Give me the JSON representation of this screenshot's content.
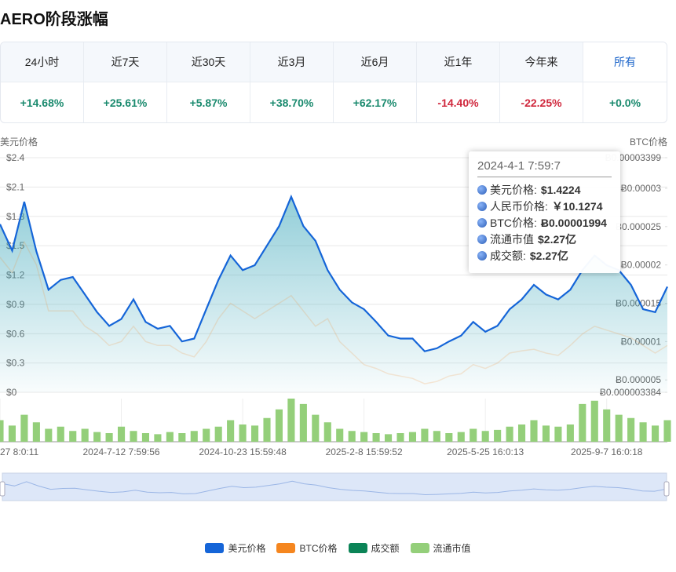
{
  "header": {
    "title": "AERO阶段涨幅"
  },
  "table": {
    "headers": [
      "24小时",
      "近7天",
      "近30天",
      "近3月",
      "近6月",
      "近1年",
      "今年来",
      "所有"
    ],
    "active": 7,
    "rows": [
      [
        "+14.68%",
        "+25.61%",
        "+5.87%",
        "+38.70%",
        "+62.17%",
        "-14.40%",
        "-22.25%",
        "+0.0%"
      ]
    ]
  },
  "chart_data": {
    "type": "line",
    "ylabel": "美元价格",
    "y2label": "BTC价格",
    "categories": [
      "27 8:0:11",
      null,
      null,
      null,
      null,
      null,
      null,
      null,
      null,
      null,
      "2024-7-12 7:59:56",
      null,
      null,
      null,
      null,
      null,
      null,
      null,
      null,
      null,
      "2024-10-23 15:59:48",
      null,
      null,
      null,
      null,
      null,
      null,
      null,
      null,
      null,
      "2025-2-8 15:59:52",
      null,
      null,
      null,
      null,
      null,
      null,
      null,
      null,
      null,
      "2025-5-25 16:0:13",
      null,
      null,
      null,
      null,
      null,
      null,
      null,
      null,
      null,
      "2025-9-7 16:0:18",
      null,
      null,
      null,
      null,
      null
    ],
    "ylim": [
      0,
      2.4
    ],
    "yticks": [
      {
        "value": 0,
        "label": "$0"
      },
      {
        "value": 0.3,
        "label": "$0.3"
      },
      {
        "value": 0.6,
        "label": "$0.6"
      },
      {
        "value": 0.9,
        "label": "$0.9"
      },
      {
        "value": 1.2,
        "label": "$1.2"
      },
      {
        "value": 1.5,
        "label": "$1.5"
      },
      {
        "value": 1.8,
        "label": "$1.8"
      },
      {
        "value": 2.1,
        "label": "$2.1"
      },
      {
        "value": 2.4,
        "label": "$2.4"
      }
    ],
    "y2lim": [
      3.384e-06,
      3.399e-05
    ],
    "y2ticks": [
      {
        "value": 3.384e-06,
        "label": "Ƀ0.000003384"
      },
      {
        "value": 5e-06,
        "label": "Ƀ0.000005"
      },
      {
        "value": 1e-05,
        "label": "Ƀ0.00001"
      },
      {
        "value": 1.5e-05,
        "label": "Ƀ0.000015"
      },
      {
        "value": 2e-05,
        "label": "Ƀ0.00002"
      },
      {
        "value": 2.5e-05,
        "label": "Ƀ0.000025"
      },
      {
        "value": 3e-05,
        "label": "Ƀ0.00003"
      },
      {
        "value": 3.399e-05,
        "label": "Ƀ0.00003399"
      }
    ],
    "grid": true,
    "series": [
      {
        "name": "美元价格",
        "color": "#1565d8",
        "axis": "y",
        "values": [
          1.72,
          1.45,
          1.95,
          1.44,
          1.05,
          1.15,
          1.18,
          1.0,
          0.82,
          0.68,
          0.75,
          0.95,
          0.72,
          0.65,
          0.68,
          0.52,
          0.55,
          0.85,
          1.15,
          1.4,
          1.25,
          1.3,
          1.5,
          1.7,
          2.0,
          1.7,
          1.55,
          1.25,
          1.05,
          0.92,
          0.85,
          0.72,
          0.58,
          0.55,
          0.55,
          0.42,
          0.45,
          0.52,
          0.58,
          0.72,
          0.62,
          0.68,
          0.85,
          0.95,
          1.1,
          1.0,
          0.95,
          1.05,
          1.25,
          1.4,
          1.3,
          1.25,
          1.1,
          0.85,
          0.82,
          1.08
        ]
      },
      {
        "name": "BTC价格",
        "color": "#f5861f",
        "axis": "y2",
        "values": [
          2.1e-05,
          1.9e-05,
          2.3e-05,
          2e-05,
          1.4e-05,
          1.4e-05,
          1.4e-05,
          1.2e-05,
          1.1e-05,
          9.5e-06,
          1e-05,
          1.2e-05,
          1e-05,
          9.5e-06,
          9.5e-06,
          8.5e-06,
          8e-06,
          1e-05,
          1.3e-05,
          1.5e-05,
          1.4e-05,
          1.3e-05,
          1.4e-05,
          1.5e-05,
          1.6e-05,
          1.4e-05,
          1.2e-05,
          1.3e-05,
          1e-05,
          8.5e-06,
          7e-06,
          6.5e-06,
          5.8e-06,
          5.5e-06,
          5.2e-06,
          4.5e-06,
          4.8e-06,
          5.5e-06,
          5.8e-06,
          7e-06,
          6.5e-06,
          7.2e-06,
          8.5e-06,
          8.8e-06,
          9e-06,
          8.5e-06,
          8.2e-06,
          9.5e-06,
          1.1e-05,
          1.2e-05,
          1.15e-05,
          1.1e-05,
          1.05e-05,
          9.5e-06,
          8.5e-06,
          9.5e-06
        ]
      },
      {
        "name": "成交额",
        "color": "#0b8457"
      },
      {
        "name": "流通市值",
        "color": "#94cf7a",
        "type": "bar",
        "values": [
          20,
          15,
          25,
          18,
          12,
          14,
          10,
          12,
          9,
          8,
          14,
          10,
          8,
          7,
          9,
          8,
          10,
          12,
          14,
          20,
          16,
          15,
          22,
          30,
          40,
          35,
          25,
          18,
          12,
          10,
          9,
          8,
          7,
          8,
          9,
          12,
          10,
          8,
          9,
          12,
          10,
          11,
          14,
          16,
          20,
          15,
          14,
          16,
          35,
          38,
          30,
          25,
          22,
          18,
          15,
          20
        ]
      }
    ],
    "tooltip": {
      "title": "2024-4-1 7:59:7",
      "rows": [
        {
          "label": "美元价格:",
          "value": "$1.4224"
        },
        {
          "label": "人民币价格:",
          "value": "￥10.1274"
        },
        {
          "label": "BTC价格:",
          "value": "Ƀ0.00001994"
        },
        {
          "label": "流通市值",
          "value": "$2.27亿"
        },
        {
          "label": "成交额:",
          "value": "$2.27亿"
        }
      ]
    }
  }
}
